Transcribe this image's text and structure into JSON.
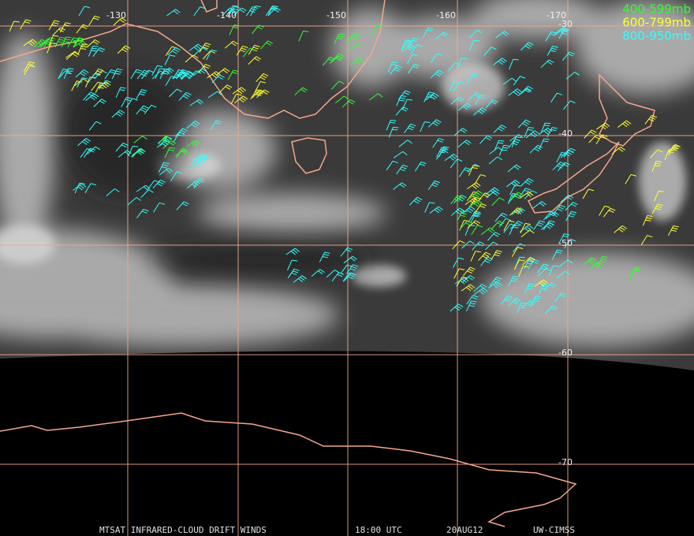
{
  "map": {
    "longitude_labels": [
      "-130",
      "-140",
      "-150",
      "-160",
      "-170"
    ],
    "latitude_labels": [
      "-30",
      "-40",
      "-50",
      "-60",
      "-70"
    ],
    "legend": [
      {
        "label": "400-599mb",
        "color": "#33ff33"
      },
      {
        "label": "600-799mb",
        "color": "#ffff33"
      },
      {
        "label": "800-950mb",
        "color": "#33ffff"
      }
    ],
    "footer": [
      "MTSAT INFRARED-CLOUD DRIFT WINDS",
      "18:00 UTC",
      "20AUG12",
      "UW-CIMSS"
    ]
  }
}
